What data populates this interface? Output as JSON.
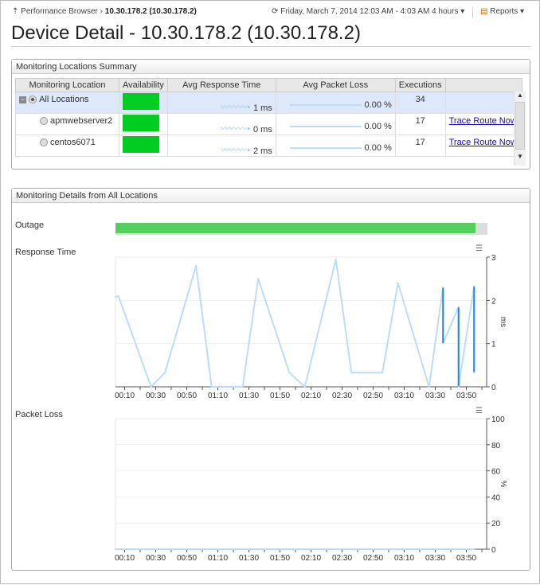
{
  "breadcrumb": {
    "parent": "Performance Browser",
    "current": "10.30.178.2 (10.30.178.2)"
  },
  "time_range": {
    "label": "Friday, March 7, 2014 12:03 AM - 4:03 AM",
    "duration": "4 hours"
  },
  "reports_label": "Reports",
  "page_title": "Device Detail - 10.30.178.2 (10.30.178.2)",
  "summary": {
    "title": "Monitoring Locations Summary",
    "columns": [
      "Monitoring Location",
      "Availability",
      "Avg Response Time",
      "Avg Packet Loss",
      "Executions",
      ""
    ],
    "rows": [
      {
        "location": "All Locations",
        "response": "1 ms",
        "loss": "0.00 %",
        "executions": "34",
        "action": "",
        "selected": true
      },
      {
        "location": "apmwebserver2",
        "response": "0 ms",
        "loss": "0.00 %",
        "executions": "17",
        "action": "Trace Route Now",
        "selected": false
      },
      {
        "location": "centos6071",
        "response": "2 ms",
        "loss": "0.00 %",
        "executions": "17",
        "action": "Trace Route Now",
        "selected": false
      }
    ]
  },
  "details": {
    "title": "Monitoring Details from All Locations",
    "outage_label": "Outage",
    "response_label": "Response Time",
    "loss_label": "Packet Loss"
  },
  "colors": {
    "availability": "#00cc22",
    "outage": "#55d05e",
    "line_light": "#bcdcfa",
    "line_dark": "#1e88e5"
  },
  "chart_data": [
    {
      "type": "line",
      "ylabel": "ms",
      "ylim": [
        0,
        3
      ],
      "yticks": [
        "0",
        "1",
        "2",
        "3"
      ],
      "xticks": [
        "00:10",
        "00:30",
        "00:50",
        "01:10",
        "01:30",
        "01:50",
        "02:10",
        "02:30",
        "02:50",
        "03:10",
        "03:30",
        "03:50"
      ],
      "x": [
        "00:04",
        "00:06",
        "00:27",
        "00:36",
        "00:56",
        "01:06",
        "01:26",
        "01:36",
        "01:56",
        "02:06",
        "02:26",
        "02:36",
        "02:56",
        "03:06",
        "03:26",
        "03:35",
        "03:35",
        "03:45",
        "03:45",
        "03:55",
        "03:55"
      ],
      "y": [
        2.08,
        2.1,
        0,
        0.33,
        2.8,
        0,
        0,
        2.5,
        0.33,
        0,
        2.95,
        0.33,
        0.33,
        2.4,
        0,
        2.3,
        1.0,
        1.85,
        0,
        2.33,
        0.33
      ]
    },
    {
      "type": "line",
      "ylabel": "%",
      "ylim": [
        0,
        100
      ],
      "yticks": [
        "0",
        "20",
        "40",
        "60",
        "80",
        "100"
      ],
      "xticks": [
        "00:10",
        "00:30",
        "00:50",
        "01:10",
        "01:30",
        "01:50",
        "02:10",
        "02:30",
        "02:50",
        "03:10",
        "03:30",
        "03:50"
      ],
      "x": [
        "00:04",
        "03:55"
      ],
      "y": [
        0,
        0
      ]
    }
  ]
}
